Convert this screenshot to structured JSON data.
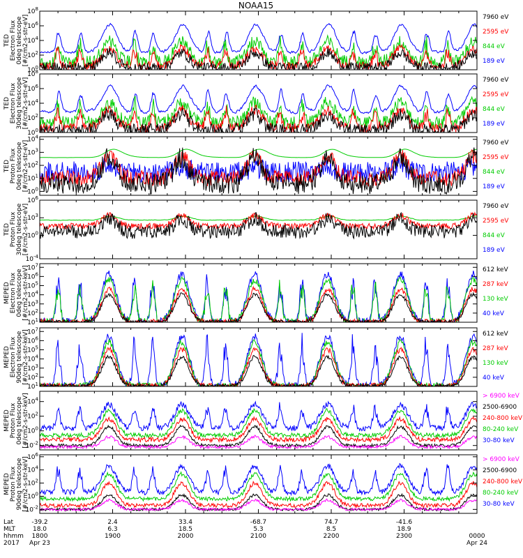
{
  "title": "NOAA15",
  "chart_data": [
    {
      "type": "line",
      "ylabel": [
        "TED",
        "Electron Flux",
        "0deg telescope",
        "[#/cm2-s-str-eV]"
      ],
      "yticks": [
        {
          "v": 0,
          "t": "10^0"
        },
        {
          "v": 2,
          "t": "10^2"
        },
        {
          "v": 4,
          "t": "10^4"
        },
        {
          "v": 6,
          "t": "10^6"
        },
        {
          "v": 8,
          "t": "10^8"
        }
      ],
      "ylim_exp": [
        0,
        8
      ],
      "legend": [
        {
          "name": "7960 eV",
          "color": "#000000"
        },
        {
          "name": "2595 eV",
          "color": "#ff0000"
        },
        {
          "name": "844 eV",
          "color": "#00cc00"
        },
        {
          "name": "189 eV",
          "color": "#0000ff"
        }
      ],
      "series": [
        {
          "name": "189 eV",
          "color": "#0000ff",
          "base": 2.4,
          "amp": 3.8,
          "noise": 1.0,
          "smooth": 0.6,
          "spikes": true
        },
        {
          "name": "844 eV",
          "color": "#00cc00",
          "base": 1.0,
          "amp": 2.8,
          "noise": 0.9,
          "smooth": 0.0,
          "spikes": true
        },
        {
          "name": "2595 eV",
          "color": "#ff0000",
          "base": 0.5,
          "amp": 2.4,
          "noise": 0.6,
          "smooth": 0.0,
          "spikes": true
        },
        {
          "name": "7960 eV",
          "color": "#000000",
          "base": 0.3,
          "amp": 2.0,
          "noise": 0.7,
          "smooth": 0.0,
          "spikes": false
        }
      ]
    },
    {
      "type": "line",
      "ylabel": [
        "TED",
        "Electron Flux",
        "30deg telescope",
        "[#/cm2-s-str-eV]"
      ],
      "yticks": [
        {
          "v": 0,
          "t": "10^0"
        },
        {
          "v": 2,
          "t": "10^2"
        },
        {
          "v": 4,
          "t": "10^4"
        },
        {
          "v": 6,
          "t": "10^6"
        },
        {
          "v": 8,
          "t": "10^8"
        }
      ],
      "ylim_exp": [
        0,
        8
      ],
      "legend": [
        {
          "name": "7960 eV",
          "color": "#000000"
        },
        {
          "name": "2595 eV",
          "color": "#ff0000"
        },
        {
          "name": "844 eV",
          "color": "#00cc00"
        },
        {
          "name": "189 eV",
          "color": "#0000ff"
        }
      ],
      "series": [
        {
          "name": "189 eV",
          "color": "#0000ff",
          "base": 2.8,
          "amp": 3.6,
          "noise": 1.1,
          "smooth": 0.6,
          "spikes": true
        },
        {
          "name": "844 eV",
          "color": "#00cc00",
          "base": 1.3,
          "amp": 2.8,
          "noise": 0.9,
          "smooth": 0.0,
          "spikes": true
        },
        {
          "name": "2595 eV",
          "color": "#ff0000",
          "base": 0.6,
          "amp": 2.5,
          "noise": 0.7,
          "smooth": 0.0,
          "spikes": true
        },
        {
          "name": "7960 eV",
          "color": "#000000",
          "base": 0.3,
          "amp": 2.2,
          "noise": 0.9,
          "smooth": 0.0,
          "spikes": false
        }
      ]
    },
    {
      "type": "line",
      "ylabel": [
        "TED",
        "Proton Flux",
        "0deg telescope",
        "[#/cm2-s-str-eV]"
      ],
      "yticks": [
        {
          "v": 0,
          "t": "10^0"
        },
        {
          "v": 1,
          "t": "10^1"
        },
        {
          "v": 2,
          "t": "10^2"
        },
        {
          "v": 3,
          "t": "10^3"
        },
        {
          "v": 4,
          "t": "10^4"
        }
      ],
      "ylim_exp": [
        -0.3,
        4.2
      ],
      "legend": [
        {
          "name": "7960 eV",
          "color": "#000000"
        },
        {
          "name": "2595 eV",
          "color": "#ff0000"
        },
        {
          "name": "844 eV",
          "color": "#00cc00"
        },
        {
          "name": "189 eV",
          "color": "#0000ff"
        }
      ],
      "series": [
        {
          "name": "189 eV",
          "color": "#0000ff",
          "base": 1.5,
          "amp": 0.3,
          "noise": 0.8,
          "smooth": 0.0,
          "spikes": false
        },
        {
          "name": "844 eV",
          "color": "#00cc00",
          "base": 2.6,
          "amp": 0.8,
          "noise": 0.25,
          "smooth": 0.9,
          "spikes": false
        },
        {
          "name": "2595 eV",
          "color": "#ff0000",
          "base": 1.0,
          "amp": 1.7,
          "noise": 0.6,
          "smooth": 0.0,
          "spikes": false
        },
        {
          "name": "7960 eV",
          "color": "#000000",
          "base": 0.6,
          "amp": 2.0,
          "noise": 0.8,
          "smooth": 0.0,
          "spikes": false
        }
      ]
    },
    {
      "type": "line",
      "ylabel": [
        "TED",
        "Proton Flux",
        "30deg telescope",
        "[#/cm2-s-str-eV]"
      ],
      "yticks": [
        {
          "v": -4,
          "t": "10^-4"
        },
        {
          "v": 0,
          "t": "10^0"
        },
        {
          "v": 3,
          "t": "10^3"
        },
        {
          "v": 6,
          "t": "10^6"
        }
      ],
      "ylim_exp": [
        -4,
        6
      ],
      "legend": [
        {
          "name": "7960 eV",
          "color": "#000000"
        },
        {
          "name": "2595 eV",
          "color": "#ff0000"
        },
        {
          "name": "844 eV",
          "color": "#00cc00"
        },
        {
          "name": "189 eV",
          "color": "#0000ff"
        }
      ],
      "series": [
        {
          "name": "844 eV",
          "color": "#00cc00",
          "base": 2.6,
          "amp": 0.7,
          "noise": 0.35,
          "smooth": 0.7,
          "spikes": false
        },
        {
          "name": "2595 eV",
          "color": "#ff0000",
          "base": 1.6,
          "amp": 1.8,
          "noise": 0.5,
          "smooth": 0.0,
          "spikes": false
        },
        {
          "name": "7960 eV",
          "color": "#000000",
          "base": 0.6,
          "amp": 2.2,
          "noise": 1.2,
          "smooth": 0.0,
          "spikes": false
        }
      ]
    },
    {
      "type": "line",
      "ylabel": [
        "MEPED",
        "Electron Flux",
        "0deg telescope",
        "[#/cm2-s-str-keV]"
      ],
      "yticks": [
        {
          "v": 1,
          "t": "10^1"
        },
        {
          "v": 2,
          "t": "10^2"
        },
        {
          "v": 3,
          "t": "10^3"
        },
        {
          "v": 4,
          "t": "10^4"
        },
        {
          "v": 5,
          "t": "10^5"
        },
        {
          "v": 6,
          "t": "10^6"
        },
        {
          "v": 7,
          "t": "10^7"
        }
      ],
      "ylim_exp": [
        1,
        7.4
      ],
      "legend": [
        {
          "name": "612 keV",
          "color": "#000000"
        },
        {
          "name": "287 keV",
          "color": "#ff0000"
        },
        {
          "name": "130 keV",
          "color": "#00cc00"
        },
        {
          "name": "40 keV",
          "color": "#0000ff"
        }
      ],
      "series": [
        {
          "name": "40 keV",
          "color": "#0000ff",
          "base": 1.05,
          "amp": 5.2,
          "noise": 0.4,
          "smooth": 0.0,
          "spikes": true
        },
        {
          "name": "130 keV",
          "color": "#00cc00",
          "base": 1.05,
          "amp": 4.6,
          "noise": 0.35,
          "smooth": 0.0,
          "spikes": true
        },
        {
          "name": "287 keV",
          "color": "#ff0000",
          "base": 1.05,
          "amp": 3.6,
          "noise": 0.3,
          "smooth": 0.0,
          "spikes": false
        },
        {
          "name": "612 keV",
          "color": "#000000",
          "base": 1.05,
          "amp": 3.0,
          "noise": 0.2,
          "smooth": 0.0,
          "spikes": false
        }
      ]
    },
    {
      "type": "line",
      "ylabel": [
        "MEPED",
        "Electron Flux",
        "90deg telescope",
        "[#/cm2-s-str-keV]"
      ],
      "yticks": [
        {
          "v": 1,
          "t": "10^1"
        },
        {
          "v": 2,
          "t": "10^2"
        },
        {
          "v": 3,
          "t": "10^3"
        },
        {
          "v": 4,
          "t": "10^4"
        },
        {
          "v": 5,
          "t": "10^5"
        },
        {
          "v": 6,
          "t": "10^6"
        },
        {
          "v": 7,
          "t": "10^7"
        }
      ],
      "ylim_exp": [
        1,
        7.4
      ],
      "legend": [
        {
          "name": "612 keV",
          "color": "#000000"
        },
        {
          "name": "287 keV",
          "color": "#ff0000"
        },
        {
          "name": "130 keV",
          "color": "#00cc00"
        },
        {
          "name": "40 keV",
          "color": "#0000ff"
        }
      ],
      "series": [
        {
          "name": "40 keV",
          "color": "#0000ff",
          "base": 1.05,
          "amp": 5.4,
          "noise": 0.4,
          "smooth": 0.0,
          "spikes": true
        },
        {
          "name": "130 keV",
          "color": "#00cc00",
          "base": 1.05,
          "amp": 4.8,
          "noise": 0.35,
          "smooth": 0.0,
          "spikes": false
        },
        {
          "name": "287 keV",
          "color": "#ff0000",
          "base": 1.05,
          "amp": 4.0,
          "noise": 0.3,
          "smooth": 0.0,
          "spikes": false
        },
        {
          "name": "612 keV",
          "color": "#000000",
          "base": 1.05,
          "amp": 3.2,
          "noise": 0.2,
          "smooth": 0.0,
          "spikes": false
        }
      ]
    },
    {
      "type": "line",
      "ylabel": [
        "MEPED",
        "Proton Flux",
        "0deg telescope",
        "[#/cm2-s-str-keV]"
      ],
      "yticks": [
        {
          "v": -2,
          "t": "10^-2"
        },
        {
          "v": 0,
          "t": "10^0"
        },
        {
          "v": 2,
          "t": "10^2"
        },
        {
          "v": 4,
          "t": "10^4"
        }
      ],
      "ylim_exp": [
        -2.6,
        5.4
      ],
      "legend": [
        {
          "name": "> 6900 keV",
          "color": "#ff00ff"
        },
        {
          "name": "2500-6900",
          "color": "#000000"
        },
        {
          "name": "240-800 keV",
          "color": "#ff0000"
        },
        {
          "name": "80-240 keV",
          "color": "#00cc00"
        },
        {
          "name": "30-80 keV",
          "color": "#0000ff"
        }
      ],
      "series": [
        {
          "name": "30-80 keV",
          "color": "#0000ff",
          "base": 0.4,
          "amp": 3.2,
          "noise": 0.4,
          "smooth": 0.0,
          "spikes": true
        },
        {
          "name": "80-240 keV",
          "color": "#00cc00",
          "base": -0.6,
          "amp": 3.4,
          "noise": 0.3,
          "smooth": 0.0,
          "spikes": false
        },
        {
          "name": "240-800 keV",
          "color": "#ff0000",
          "base": -1.2,
          "amp": 2.8,
          "noise": 0.3,
          "smooth": 0.0,
          "spikes": false
        },
        {
          "name": "2500-6900",
          "color": "#000000",
          "base": -2.0,
          "amp": 2.6,
          "noise": 0.2,
          "smooth": 0.0,
          "spikes": false
        },
        {
          "name": "> 6900 keV",
          "color": "#ff00ff",
          "base": -2.2,
          "amp": 1.4,
          "noise": 0.2,
          "smooth": 0.0,
          "spikes": false
        }
      ]
    },
    {
      "type": "line",
      "ylabel": [
        "MEPED",
        "Proton Flux",
        "90deg telescope",
        "[#/cm2-s-str-keV]"
      ],
      "yticks": [
        {
          "v": -2,
          "t": "10^-2"
        },
        {
          "v": 0,
          "t": "10^0"
        },
        {
          "v": 2,
          "t": "10^2"
        },
        {
          "v": 4,
          "t": "10^4"
        },
        {
          "v": 6,
          "t": "10^6"
        }
      ],
      "ylim_exp": [
        -2.6,
        6.3
      ],
      "legend": [
        {
          "name": "> 6900 keV",
          "color": "#ff00ff"
        },
        {
          "name": "2500-6900",
          "color": "#000000"
        },
        {
          "name": "240-800 keV",
          "color": "#ff0000"
        },
        {
          "name": "80-240 keV",
          "color": "#00cc00"
        },
        {
          "name": "30-80 keV",
          "color": "#0000ff"
        }
      ],
      "series": [
        {
          "name": "30-80 keV",
          "color": "#0000ff",
          "base": 0.6,
          "amp": 4.0,
          "noise": 0.4,
          "smooth": 0.0,
          "spikes": true
        },
        {
          "name": "80-240 keV",
          "color": "#00cc00",
          "base": -0.4,
          "amp": 3.8,
          "noise": 0.3,
          "smooth": 0.0,
          "spikes": false
        },
        {
          "name": "240-800 keV",
          "color": "#ff0000",
          "base": -1.4,
          "amp": 3.4,
          "noise": 0.3,
          "smooth": 0.0,
          "spikes": false
        },
        {
          "name": "2500-6900",
          "color": "#000000",
          "base": -2.0,
          "amp": 2.2,
          "noise": 0.2,
          "smooth": 0.0,
          "spikes": false
        },
        {
          "name": "> 6900 keV",
          "color": "#ff00ff",
          "base": -2.0,
          "amp": 1.4,
          "noise": 0.2,
          "smooth": 0.0,
          "spikes": false
        }
      ]
    }
  ],
  "time_axis": {
    "range_hhmm": [
      "1800",
      "2400"
    ],
    "row_labels": [
      "Lat",
      "MLT",
      "hhmm",
      "2017"
    ],
    "ticks": [
      {
        "t": 0.0,
        "lat": "-39.2",
        "mlt": "18.0",
        "hhmm": "1800",
        "date": "Apr 23"
      },
      {
        "t": 1.0,
        "lat": "2.4",
        "mlt": "6.3",
        "hhmm": "1900",
        "date": ""
      },
      {
        "t": 2.0,
        "lat": "33.4",
        "mlt": "18.5",
        "hhmm": "2000",
        "date": ""
      },
      {
        "t": 3.0,
        "lat": "-68.7",
        "mlt": "5.3",
        "hhmm": "2100",
        "date": ""
      },
      {
        "t": 4.0,
        "lat": "74.7",
        "mlt": "8.5",
        "hhmm": "2200",
        "date": ""
      },
      {
        "t": 5.0,
        "lat": "-41.6",
        "mlt": "18.9",
        "hhmm": "2300",
        "date": ""
      },
      {
        "t": 6.0,
        "lat": "",
        "mlt": "",
        "hhmm": "0000",
        "date": "Apr 24"
      }
    ]
  }
}
